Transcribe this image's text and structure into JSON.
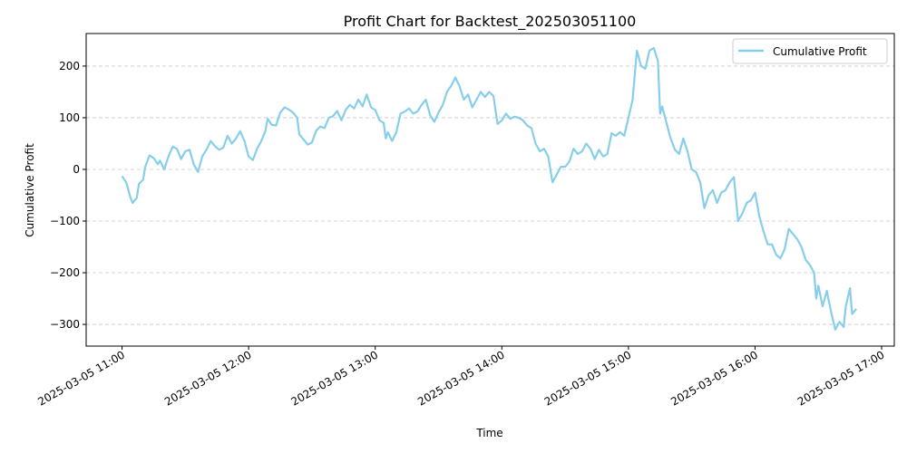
{
  "chart_data": {
    "type": "line",
    "title": "Profit Chart for Backtest_202503051100",
    "xlabel": "Time",
    "ylabel": "Cumulative Profit",
    "xlim": [
      "2025-03-05 10:43",
      "2025-03-05 17:06"
    ],
    "ylim": [
      -342,
      263
    ],
    "x_ticks": [
      "2025-03-05 11:00",
      "2025-03-05 12:00",
      "2025-03-05 13:00",
      "2025-03-05 14:00",
      "2025-03-05 15:00",
      "2025-03-05 16:00",
      "2025-03-05 17:00"
    ],
    "y_ticks": [
      -300,
      -200,
      -100,
      0,
      100,
      200
    ],
    "grid": "y-dashed",
    "legend": "top-right",
    "color": "#87ceeb",
    "series": [
      {
        "name": "Cumulative Profit",
        "points": [
          [
            "2025-03-05 11:00",
            -13
          ],
          [
            "2025-03-05 11:02",
            -25
          ],
          [
            "2025-03-05 11:04",
            -55
          ],
          [
            "2025-03-05 11:05",
            -65
          ],
          [
            "2025-03-05 11:07",
            -55
          ],
          [
            "2025-03-05 11:08",
            -28
          ],
          [
            "2025-03-05 11:10",
            -20
          ],
          [
            "2025-03-05 11:11",
            5
          ],
          [
            "2025-03-05 11:13",
            27
          ],
          [
            "2025-03-05 11:15",
            22
          ],
          [
            "2025-03-05 11:17",
            10
          ],
          [
            "2025-03-05 11:18",
            17
          ],
          [
            "2025-03-05 11:20",
            0
          ],
          [
            "2025-03-05 11:22",
            25
          ],
          [
            "2025-03-05 11:24",
            44
          ],
          [
            "2025-03-05 11:26",
            40
          ],
          [
            "2025-03-05 11:28",
            20
          ],
          [
            "2025-03-05 11:30",
            35
          ],
          [
            "2025-03-05 11:32",
            38
          ],
          [
            "2025-03-05 11:34",
            10
          ],
          [
            "2025-03-05 11:36",
            -5
          ],
          [
            "2025-03-05 11:38",
            25
          ],
          [
            "2025-03-05 11:40",
            38
          ],
          [
            "2025-03-05 11:42",
            55
          ],
          [
            "2025-03-05 11:44",
            45
          ],
          [
            "2025-03-05 11:46",
            38
          ],
          [
            "2025-03-05 11:48",
            42
          ],
          [
            "2025-03-05 11:50",
            65
          ],
          [
            "2025-03-05 11:52",
            50
          ],
          [
            "2025-03-05 11:54",
            60
          ],
          [
            "2025-03-05 11:56",
            74
          ],
          [
            "2025-03-05 11:58",
            55
          ],
          [
            "2025-03-05 12:00",
            25
          ],
          [
            "2025-03-05 12:02",
            18
          ],
          [
            "2025-03-05 12:04",
            40
          ],
          [
            "2025-03-05 12:06",
            55
          ],
          [
            "2025-03-05 12:08",
            75
          ],
          [
            "2025-03-05 12:09",
            98
          ],
          [
            "2025-03-05 12:11",
            86
          ],
          [
            "2025-03-05 12:13",
            85
          ],
          [
            "2025-03-05 12:15",
            110
          ],
          [
            "2025-03-05 12:17",
            120
          ],
          [
            "2025-03-05 12:19",
            116
          ],
          [
            "2025-03-05 12:21",
            110
          ],
          [
            "2025-03-05 12:23",
            100
          ],
          [
            "2025-03-05 12:24",
            68
          ],
          [
            "2025-03-05 12:26",
            58
          ],
          [
            "2025-03-05 12:28",
            48
          ],
          [
            "2025-03-05 12:30",
            52
          ],
          [
            "2025-03-05 12:32",
            75
          ],
          [
            "2025-03-05 12:34",
            83
          ],
          [
            "2025-03-05 12:36",
            80
          ],
          [
            "2025-03-05 12:38",
            100
          ],
          [
            "2025-03-05 12:40",
            103
          ],
          [
            "2025-03-05 12:42",
            113
          ],
          [
            "2025-03-05 12:44",
            95
          ],
          [
            "2025-03-05 12:46",
            115
          ],
          [
            "2025-03-05 12:48",
            125
          ],
          [
            "2025-03-05 12:50",
            118
          ],
          [
            "2025-03-05 12:52",
            135
          ],
          [
            "2025-03-05 12:54",
            122
          ],
          [
            "2025-03-05 12:56",
            145
          ],
          [
            "2025-03-05 12:58",
            120
          ],
          [
            "2025-03-05 13:00",
            115
          ],
          [
            "2025-03-05 13:02",
            95
          ],
          [
            "2025-03-05 13:04",
            90
          ],
          [
            "2025-03-05 13:05",
            60
          ],
          [
            "2025-03-05 13:06",
            72
          ],
          [
            "2025-03-05 13:08",
            55
          ],
          [
            "2025-03-05 13:10",
            72
          ],
          [
            "2025-03-05 13:12",
            108
          ],
          [
            "2025-03-05 13:14",
            112
          ],
          [
            "2025-03-05 13:16",
            118
          ],
          [
            "2025-03-05 13:18",
            108
          ],
          [
            "2025-03-05 13:20",
            112
          ],
          [
            "2025-03-05 13:22",
            125
          ],
          [
            "2025-03-05 13:24",
            135
          ],
          [
            "2025-03-05 13:26",
            105
          ],
          [
            "2025-03-05 13:28",
            92
          ],
          [
            "2025-03-05 13:30",
            110
          ],
          [
            "2025-03-05 13:32",
            125
          ],
          [
            "2025-03-05 13:34",
            150
          ],
          [
            "2025-03-05 13:36",
            162
          ],
          [
            "2025-03-05 13:38",
            178
          ],
          [
            "2025-03-05 13:40",
            160
          ],
          [
            "2025-03-05 13:42",
            135
          ],
          [
            "2025-03-05 13:44",
            145
          ],
          [
            "2025-03-05 13:46",
            120
          ],
          [
            "2025-03-05 13:48",
            135
          ],
          [
            "2025-03-05 13:50",
            150
          ],
          [
            "2025-03-05 13:52",
            140
          ],
          [
            "2025-03-05 13:54",
            150
          ],
          [
            "2025-03-05 13:56",
            142
          ],
          [
            "2025-03-05 13:58",
            88
          ],
          [
            "2025-03-05 14:00",
            95
          ],
          [
            "2025-03-05 14:02",
            108
          ],
          [
            "2025-03-05 14:04",
            98
          ],
          [
            "2025-03-05 14:06",
            102
          ],
          [
            "2025-03-05 14:08",
            100
          ],
          [
            "2025-03-05 14:10",
            95
          ],
          [
            "2025-03-05 14:12",
            85
          ],
          [
            "2025-03-05 14:14",
            80
          ],
          [
            "2025-03-05 14:16",
            50
          ],
          [
            "2025-03-05 14:18",
            35
          ],
          [
            "2025-03-05 14:20",
            40
          ],
          [
            "2025-03-05 14:22",
            25
          ],
          [
            "2025-03-05 14:24",
            -25
          ],
          [
            "2025-03-05 14:26",
            -10
          ],
          [
            "2025-03-05 14:28",
            5
          ],
          [
            "2025-03-05 14:30",
            5
          ],
          [
            "2025-03-05 14:32",
            15
          ],
          [
            "2025-03-05 14:34",
            40
          ],
          [
            "2025-03-05 14:36",
            30
          ],
          [
            "2025-03-05 14:38",
            35
          ],
          [
            "2025-03-05 14:40",
            50
          ],
          [
            "2025-03-05 14:42",
            40
          ],
          [
            "2025-03-05 14:44",
            20
          ],
          [
            "2025-03-05 14:46",
            38
          ],
          [
            "2025-03-05 14:48",
            25
          ],
          [
            "2025-03-05 14:50",
            30
          ],
          [
            "2025-03-05 14:52",
            70
          ],
          [
            "2025-03-05 14:54",
            65
          ],
          [
            "2025-03-05 14:56",
            72
          ],
          [
            "2025-03-05 14:58",
            65
          ],
          [
            "2025-03-05 15:00",
            100
          ],
          [
            "2025-03-05 15:02",
            135
          ],
          [
            "2025-03-05 15:04",
            230
          ],
          [
            "2025-03-05 15:06",
            200
          ],
          [
            "2025-03-05 15:08",
            195
          ],
          [
            "2025-03-05 15:10",
            230
          ],
          [
            "2025-03-05 15:12",
            235
          ],
          [
            "2025-03-05 15:14",
            210
          ],
          [
            "2025-03-05 15:15",
            108
          ],
          [
            "2025-03-05 15:16",
            122
          ],
          [
            "2025-03-05 15:18",
            90
          ],
          [
            "2025-03-05 15:20",
            60
          ],
          [
            "2025-03-05 15:22",
            38
          ],
          [
            "2025-03-05 15:24",
            30
          ],
          [
            "2025-03-05 15:26",
            60
          ],
          [
            "2025-03-05 15:28",
            35
          ],
          [
            "2025-03-05 15:30",
            0
          ],
          [
            "2025-03-05 15:32",
            -5
          ],
          [
            "2025-03-05 15:34",
            -25
          ],
          [
            "2025-03-05 15:36",
            -75
          ],
          [
            "2025-03-05 15:38",
            -50
          ],
          [
            "2025-03-05 15:40",
            -40
          ],
          [
            "2025-03-05 15:42",
            -65
          ],
          [
            "2025-03-05 15:44",
            -45
          ],
          [
            "2025-03-05 15:46",
            -40
          ],
          [
            "2025-03-05 15:48",
            -25
          ],
          [
            "2025-03-05 15:50",
            -15
          ],
          [
            "2025-03-05 15:52",
            -100
          ],
          [
            "2025-03-05 15:54",
            -85
          ],
          [
            "2025-03-05 15:56",
            -65
          ],
          [
            "2025-03-05 15:58",
            -60
          ],
          [
            "2025-03-05 16:00",
            -45
          ],
          [
            "2025-03-05 16:02",
            -90
          ],
          [
            "2025-03-05 16:04",
            -120
          ],
          [
            "2025-03-05 16:06",
            -145
          ],
          [
            "2025-03-05 16:08",
            -145
          ],
          [
            "2025-03-05 16:10",
            -165
          ],
          [
            "2025-03-05 16:12",
            -172
          ],
          [
            "2025-03-05 16:14",
            -155
          ],
          [
            "2025-03-05 16:16",
            -115
          ],
          [
            "2025-03-05 16:18",
            -125
          ],
          [
            "2025-03-05 16:20",
            -135
          ],
          [
            "2025-03-05 16:22",
            -150
          ],
          [
            "2025-03-05 16:24",
            -175
          ],
          [
            "2025-03-05 16:26",
            -185
          ],
          [
            "2025-03-05 16:28",
            -200
          ],
          [
            "2025-03-05 16:29",
            -250
          ],
          [
            "2025-03-05 16:30",
            -225
          ],
          [
            "2025-03-05 16:32",
            -265
          ],
          [
            "2025-03-05 16:34",
            -235
          ],
          [
            "2025-03-05 16:36",
            -275
          ],
          [
            "2025-03-05 16:38",
            -310
          ],
          [
            "2025-03-05 16:40",
            -295
          ],
          [
            "2025-03-05 16:42",
            -305
          ],
          [
            "2025-03-05 16:43",
            -265
          ],
          [
            "2025-03-05 16:45",
            -230
          ],
          [
            "2025-03-05 16:46",
            -280
          ],
          [
            "2025-03-05 16:48",
            -270
          ]
        ]
      }
    ]
  }
}
